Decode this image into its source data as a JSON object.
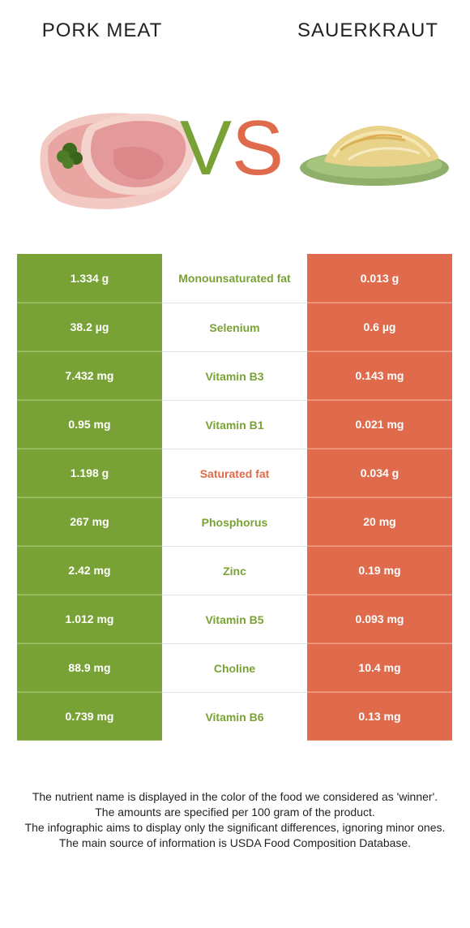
{
  "titles": {
    "left": "PORK MEAT",
    "right": "SAUERKRAUT"
  },
  "vs": {
    "v": "V",
    "s": "S"
  },
  "colors": {
    "left_winner": "#79a236",
    "right_winner": "#e06b4c"
  },
  "rows": [
    {
      "left": "1.334 g",
      "nutrient": "Monounsaturated fat",
      "right": "0.013 g",
      "winner": "left"
    },
    {
      "left": "38.2 µg",
      "nutrient": "Selenium",
      "right": "0.6 µg",
      "winner": "left"
    },
    {
      "left": "7.432 mg",
      "nutrient": "Vitamin B3",
      "right": "0.143 mg",
      "winner": "left"
    },
    {
      "left": "0.95 mg",
      "nutrient": "Vitamin B1",
      "right": "0.021 mg",
      "winner": "left"
    },
    {
      "left": "1.198 g",
      "nutrient": "Saturated fat",
      "right": "0.034 g",
      "winner": "right"
    },
    {
      "left": "267 mg",
      "nutrient": "Phosphorus",
      "right": "20 mg",
      "winner": "left"
    },
    {
      "left": "2.42 mg",
      "nutrient": "Zinc",
      "right": "0.19 mg",
      "winner": "left"
    },
    {
      "left": "1.012 mg",
      "nutrient": "Vitamin B5",
      "right": "0.093 mg",
      "winner": "left"
    },
    {
      "left": "88.9 mg",
      "nutrient": "Choline",
      "right": "10.4 mg",
      "winner": "left"
    },
    {
      "left": "0.739 mg",
      "nutrient": "Vitamin B6",
      "right": "0.13 mg",
      "winner": "left"
    }
  ],
  "footnotes": [
    "The nutrient name is displayed in the color of the food we considered as 'winner'.",
    "The amounts are specified per 100 gram of the product.",
    "The infographic aims to display only the significant differences, ignoring minor ones.",
    "The main source of information is USDA Food Composition Database."
  ]
}
